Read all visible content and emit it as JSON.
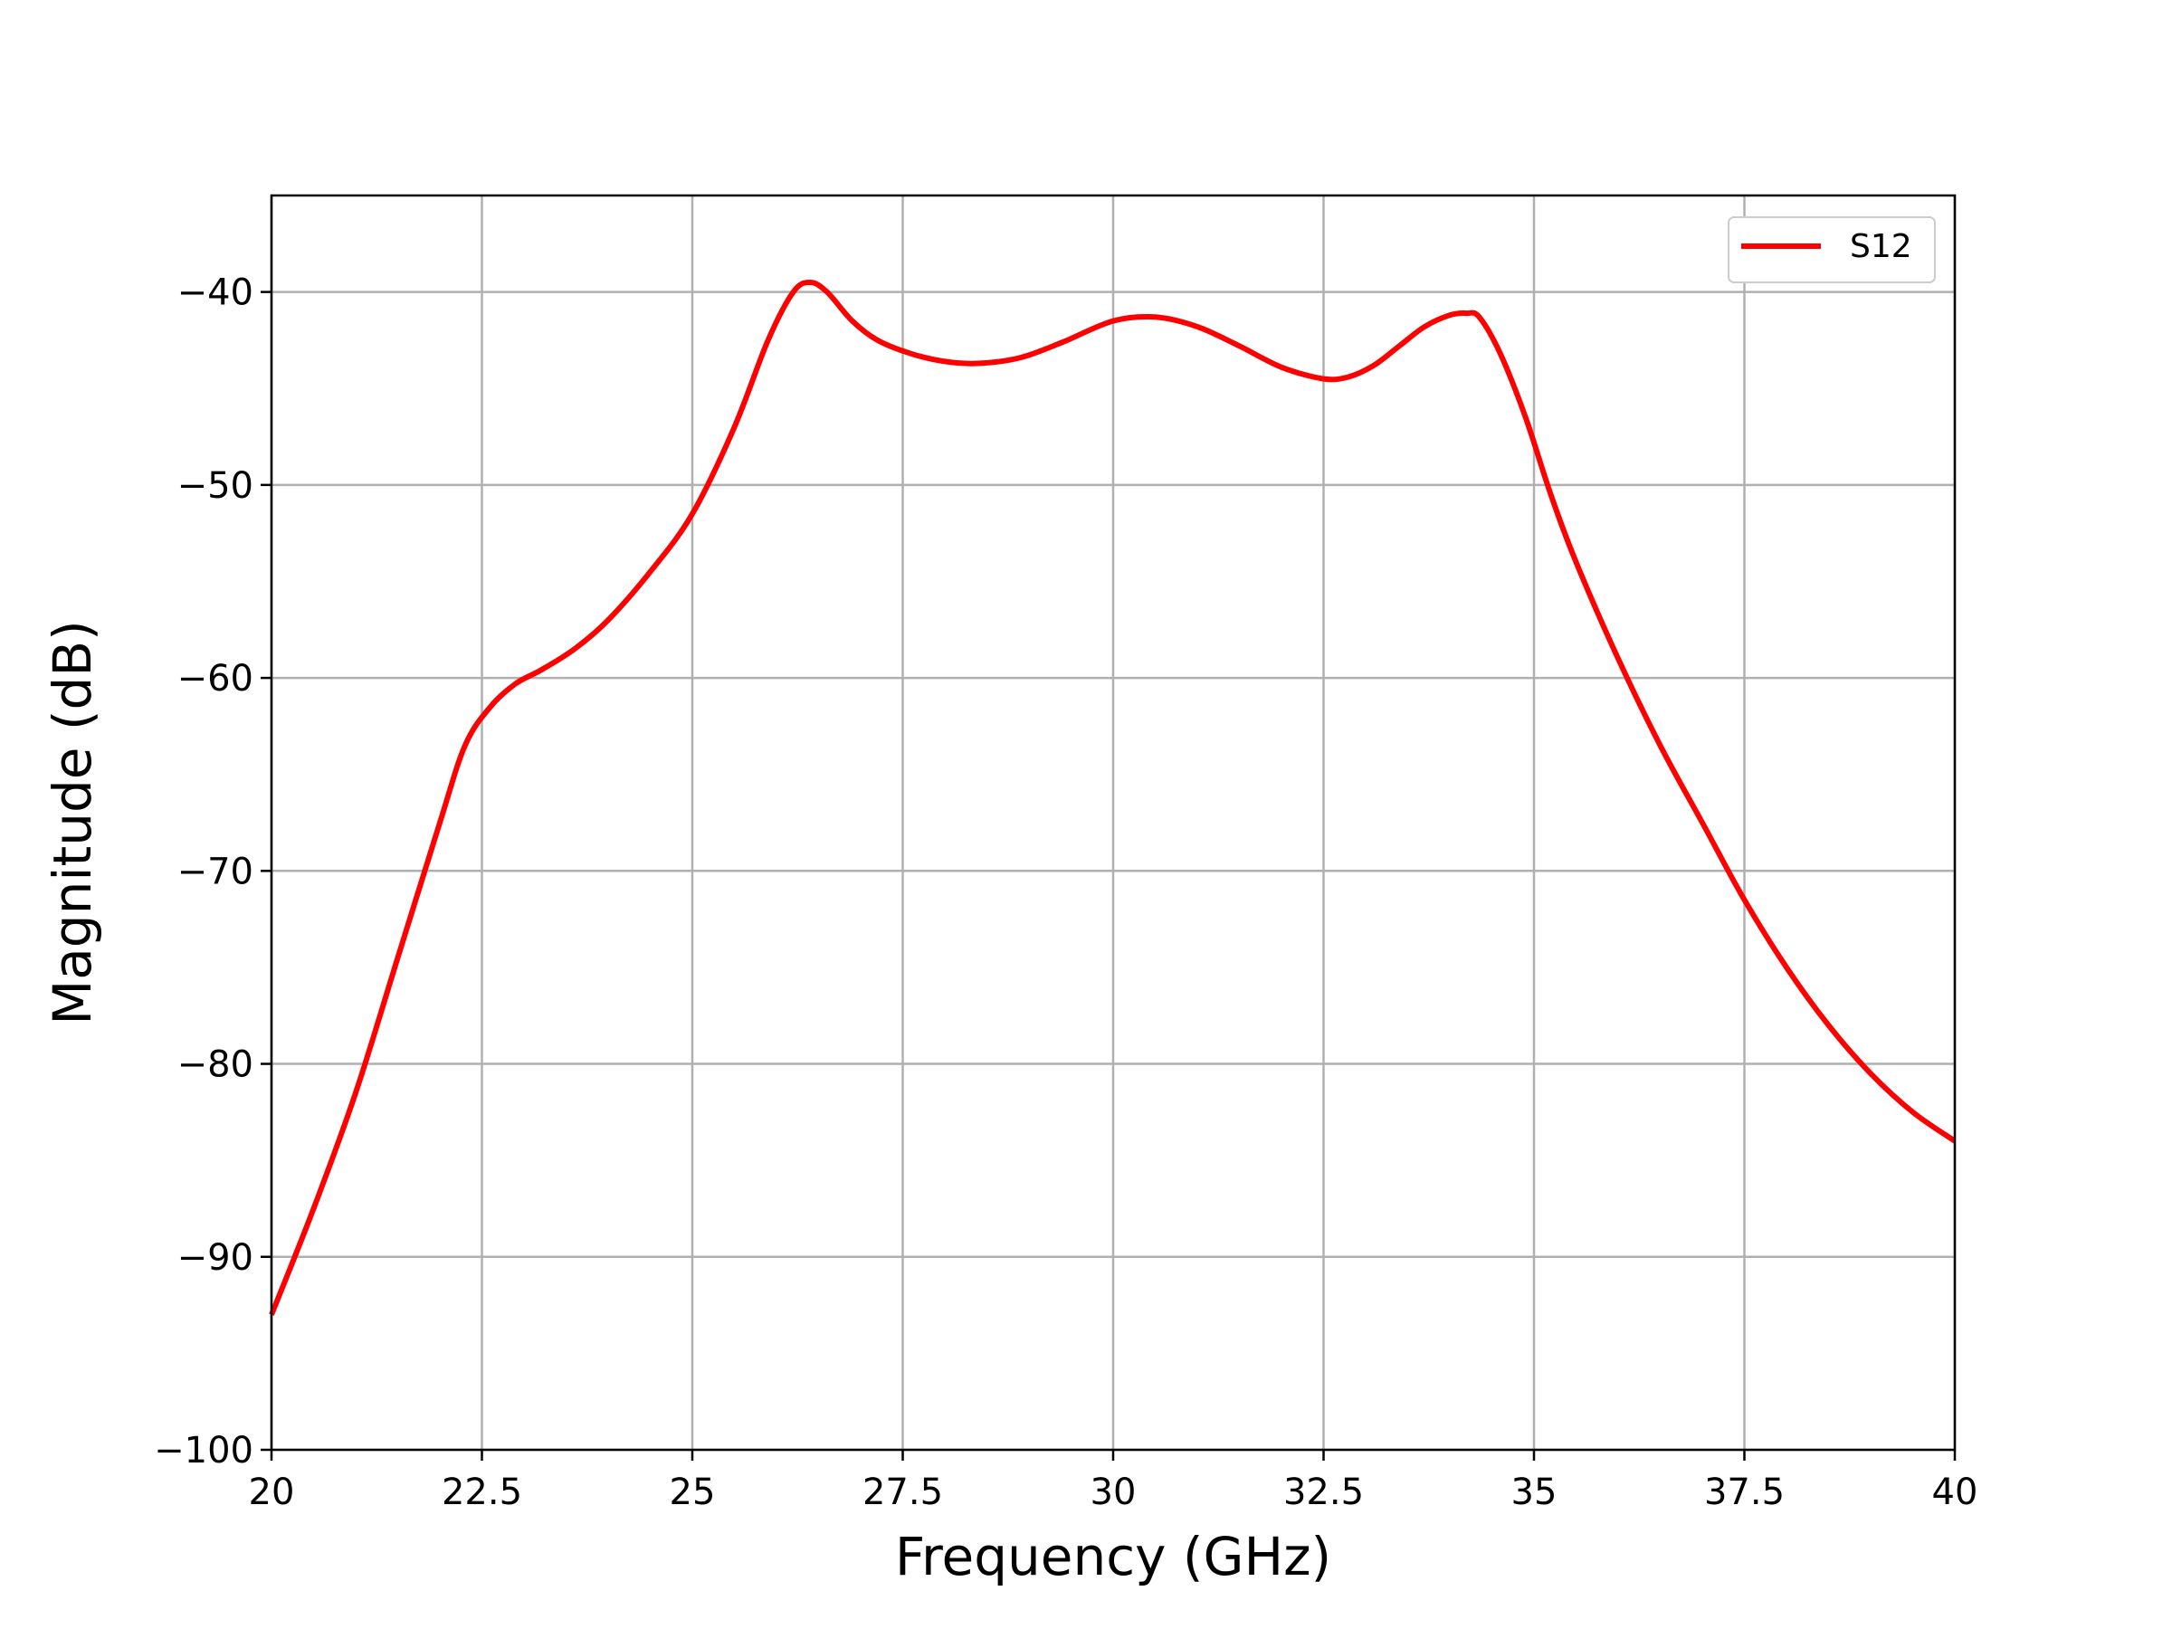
{
  "chart_data": {
    "type": "line",
    "title": "",
    "xlabel": "Frequency (GHz)",
    "ylabel": "Magnitude (dB)",
    "xlim": [
      20,
      40
    ],
    "ylim": [
      -100,
      -35
    ],
    "xticks": [
      20,
      22.5,
      25,
      27.5,
      30,
      32.5,
      35,
      37.5,
      40
    ],
    "xtick_labels": [
      "20",
      "22.5",
      "25",
      "27.5",
      "30",
      "32.5",
      "35",
      "37.5",
      "40"
    ],
    "yticks": [
      -100,
      -90,
      -80,
      -70,
      -60,
      -50,
      -40
    ],
    "ytick_labels": [
      "−100",
      "−90",
      "−80",
      "−70",
      "−60",
      "−50",
      "−40"
    ],
    "grid": true,
    "legend_position": "top-right",
    "series": [
      {
        "name": "S12",
        "color": "#ff0000",
        "x": [
          20,
          20.5,
          21,
          21.5,
          22,
          22.3,
          22.6,
          22.9,
          23.2,
          23.6,
          24,
          24.5,
          25,
          25.5,
          25.9,
          26.2,
          26.4,
          26.6,
          26.9,
          27.2,
          27.6,
          28,
          28.4,
          28.9,
          29.4,
          30,
          30.5,
          31,
          31.5,
          32,
          32.5,
          32.8,
          33.1,
          33.4,
          33.7,
          34,
          34.2,
          34.35,
          34.6,
          34.9,
          35.2,
          35.5,
          36,
          36.5,
          37,
          37.5,
          38,
          38.5,
          39,
          39.5,
          40
        ],
        "y": [
          -93,
          -87.5,
          -81.5,
          -74.5,
          -67.5,
          -63.5,
          -61.5,
          -60.3,
          -59.6,
          -58.5,
          -57,
          -54.5,
          -51.5,
          -47,
          -42.5,
          -40,
          -39.5,
          -40,
          -41.5,
          -42.5,
          -43.2,
          -43.6,
          -43.7,
          -43.4,
          -42.6,
          -41.5,
          -41.3,
          -41.8,
          -42.8,
          -43.9,
          -44.5,
          -44.4,
          -43.8,
          -42.8,
          -41.8,
          -41.2,
          -41.1,
          -41.3,
          -43.2,
          -46.5,
          -50.5,
          -54,
          -59,
          -63.5,
          -67.5,
          -71.5,
          -75,
          -78,
          -80.5,
          -82.5,
          -84
        ]
      }
    ]
  }
}
